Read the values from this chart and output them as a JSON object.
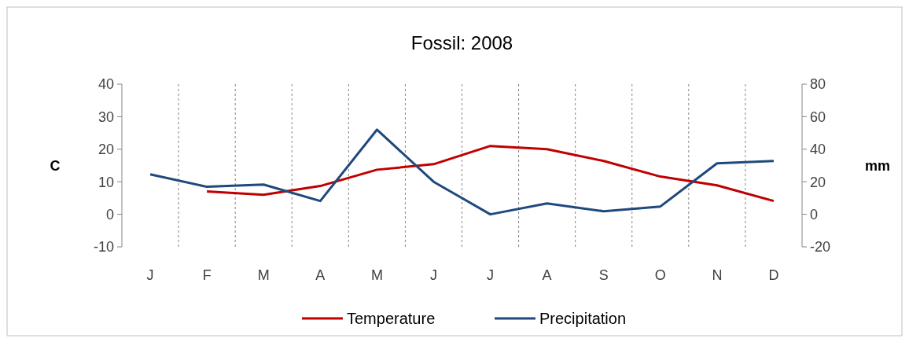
{
  "chart_data": {
    "type": "line",
    "title": "Fossil: 2008",
    "ylabel": "C",
    "y2label": "mm",
    "categories": [
      "J",
      "F",
      "M",
      "A",
      "M",
      "J",
      "J",
      "A",
      "S",
      "O",
      "N",
      "D"
    ],
    "series": [
      {
        "name": "Temperature",
        "color": "#c00000",
        "values": [
          null,
          7,
          6,
          8.7,
          13.7,
          15.4,
          21,
          20,
          16.4,
          11.6,
          8.9,
          4.1
        ]
      },
      {
        "name": "Precipitation",
        "color": "#1f497d",
        "axis": "y2",
        "values": [
          24.6,
          16.9,
          18.3,
          8.2,
          52,
          20,
          0,
          6.7,
          1.9,
          4.8,
          31.3,
          32.8
        ]
      }
    ],
    "ylim": [
      -10,
      40
    ],
    "yticks": [
      -10,
      0,
      10,
      20,
      30,
      40
    ],
    "y2lim": [
      -20,
      80
    ],
    "y2ticks": [
      -20,
      0,
      20,
      40,
      60,
      80
    ],
    "grid": "x",
    "legend": "bottom",
    "line_style": "solid"
  }
}
